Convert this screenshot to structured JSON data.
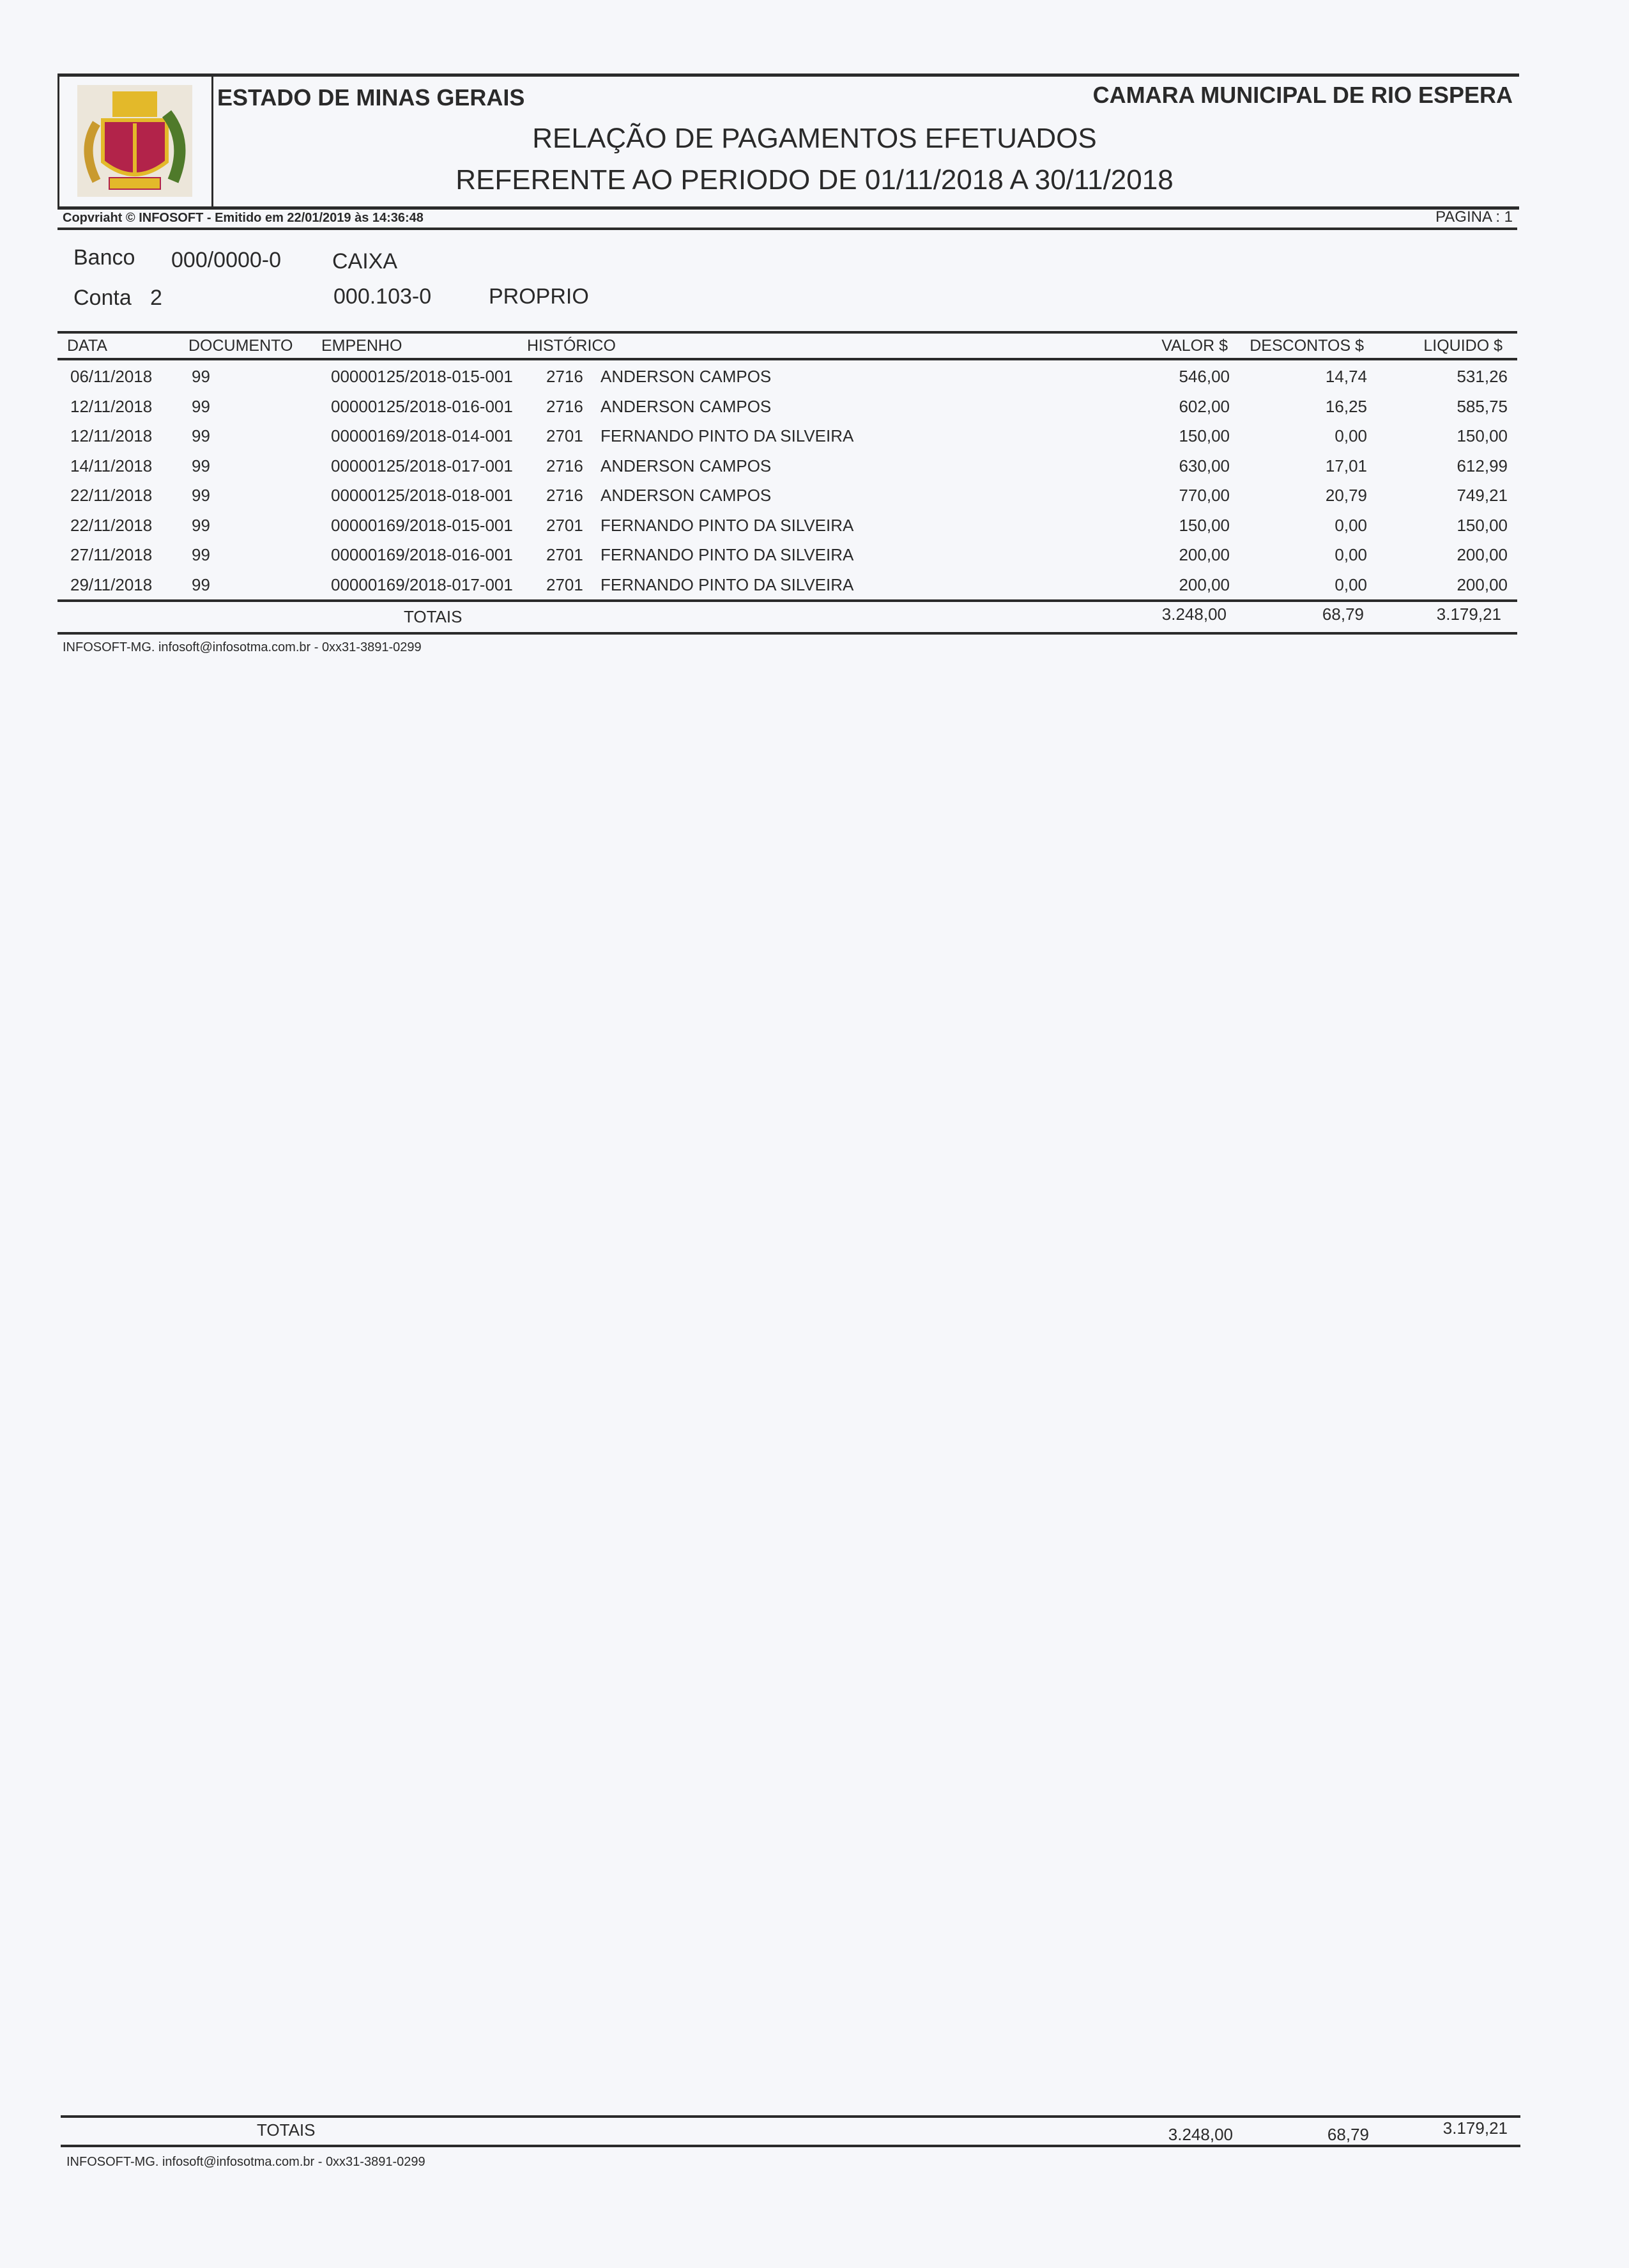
{
  "header": {
    "state": "ESTADO DE MINAS GERAIS",
    "entity": "CAMARA MUNICIPAL DE RIO ESPERA",
    "title": "RELAÇÃO DE PAGAMENTOS EFETUADOS",
    "subtitle": "REFERENTE AO PERIODO DE 01/11/2018 A 30/11/2018",
    "copyright": "Copvriaht © INFOSOFT - Emitido em 22/01/2019 às 14:36:48",
    "page": "PAGINA : 1"
  },
  "account": {
    "banco_label": "Banco",
    "banco_code": "000/0000-0",
    "banco_name": "CAIXA",
    "conta_label": "Conta",
    "conta_num": "2",
    "conta_code": "000.103-0",
    "conta_type": "PROPRIO"
  },
  "table": {
    "columns": [
      "DATA",
      "DOCUMENTO",
      "EMPENHO",
      "HISTÓRICO",
      "VALOR $",
      "DESCONTOS $",
      "LIQUIDO $"
    ],
    "rows": [
      {
        "data": "06/11/2018",
        "doc": "99",
        "empenho": "00000125/2018-015-001",
        "cod": "2716",
        "hist": "ANDERSON CAMPOS",
        "valor": "546,00",
        "desc": "14,74",
        "liq": "531,26"
      },
      {
        "data": "12/11/2018",
        "doc": "99",
        "empenho": "00000125/2018-016-001",
        "cod": "2716",
        "hist": "ANDERSON CAMPOS",
        "valor": "602,00",
        "desc": "16,25",
        "liq": "585,75"
      },
      {
        "data": "12/11/2018",
        "doc": "99",
        "empenho": "00000169/2018-014-001",
        "cod": "2701",
        "hist": "FERNANDO PINTO DA SILVEIRA",
        "valor": "150,00",
        "desc": "0,00",
        "liq": "150,00"
      },
      {
        "data": "14/11/2018",
        "doc": "99",
        "empenho": "00000125/2018-017-001",
        "cod": "2716",
        "hist": "ANDERSON CAMPOS",
        "valor": "630,00",
        "desc": "17,01",
        "liq": "612,99"
      },
      {
        "data": "22/11/2018",
        "doc": "99",
        "empenho": "00000125/2018-018-001",
        "cod": "2716",
        "hist": "ANDERSON CAMPOS",
        "valor": "770,00",
        "desc": "20,79",
        "liq": "749,21"
      },
      {
        "data": "22/11/2018",
        "doc": "99",
        "empenho": "00000169/2018-015-001",
        "cod": "2701",
        "hist": "FERNANDO PINTO DA SILVEIRA",
        "valor": "150,00",
        "desc": "0,00",
        "liq": "150,00"
      },
      {
        "data": "27/11/2018",
        "doc": "99",
        "empenho": "00000169/2018-016-001",
        "cod": "2701",
        "hist": "FERNANDO PINTO DA SILVEIRA",
        "valor": "200,00",
        "desc": "0,00",
        "liq": "200,00"
      },
      {
        "data": "29/11/2018",
        "doc": "99",
        "empenho": "00000169/2018-017-001",
        "cod": "2701",
        "hist": "FERNANDO PINTO DA SILVEIRA",
        "valor": "200,00",
        "desc": "0,00",
        "liq": "200,00"
      }
    ],
    "totals": {
      "label": "TOTAIS",
      "valor": "3.248,00",
      "desc": "68,79",
      "liq": "3.179,21"
    }
  },
  "footer": {
    "text": "INFOSOFT-MG. infosoft@infosotma.com.br - 0xx31-3891-0299",
    "totals_label": "TOTAIS",
    "valor": "3.248,00",
    "desc": "68,79",
    "liq": "3.179,21"
  },
  "colors": {
    "logo_gold": "#e3b92a",
    "logo_red": "#b2234a",
    "logo_green": "#4f7a2a"
  }
}
